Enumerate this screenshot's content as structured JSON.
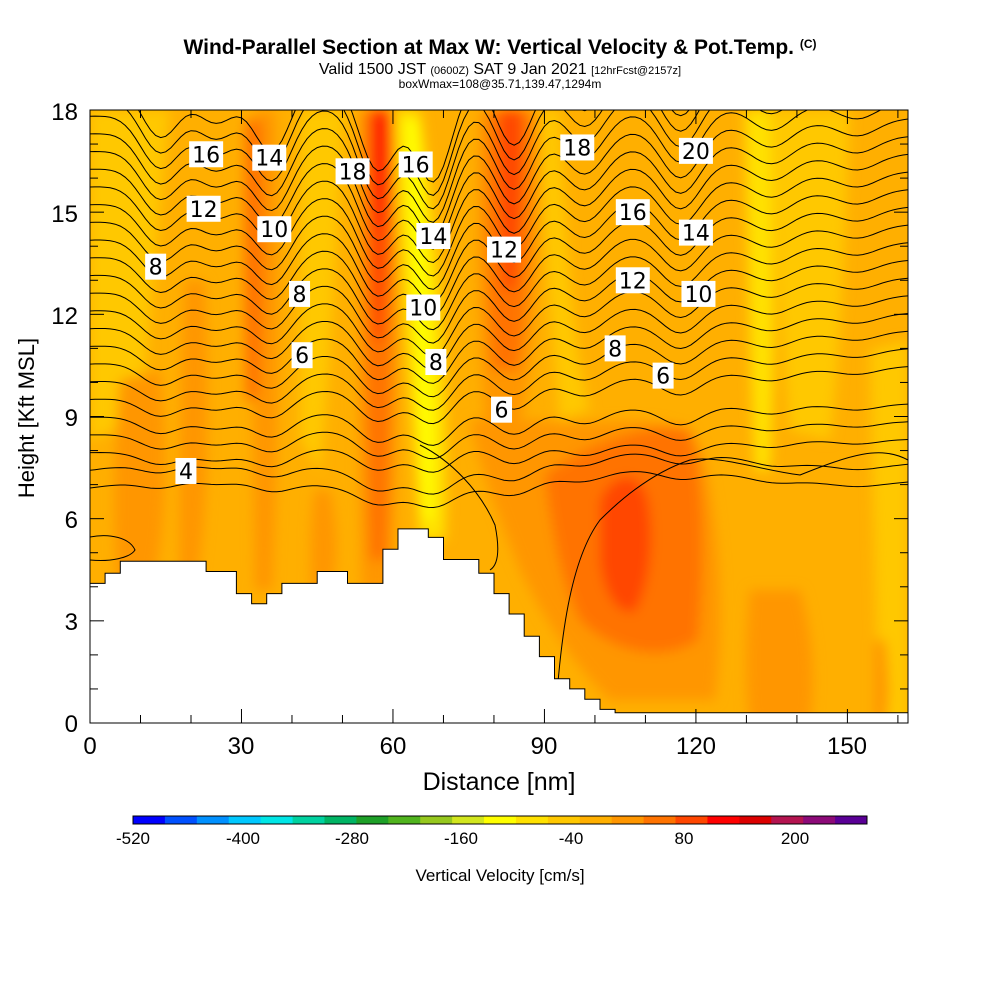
{
  "title": {
    "main": "Wind-Parallel Section at Max W: Vertical Velocity & Pot.Temp.",
    "copyright": "(C)",
    "valid_prefix": "Valid 1500 JST",
    "valid_utc": "(0600Z)",
    "valid_date": "SAT 9 Jan 2021",
    "forecast": "[12hrFcst@2157z]",
    "box": "boxWmax=108@35.71,139.47,1294m"
  },
  "colorbar": {
    "label": "Vertical Velocity [cm/s]",
    "tick_labels": [
      "-520",
      "-400",
      "-280",
      "-160",
      "-40",
      "80",
      "200"
    ],
    "colors": [
      "#0000ff",
      "#0050ff",
      "#0090ff",
      "#00c8ff",
      "#00e6e6",
      "#00d2a0",
      "#00b464",
      "#1ea028",
      "#50b41e",
      "#96c81e",
      "#d2e61e",
      "#ffff00",
      "#ffe100",
      "#ffc800",
      "#ffaf00",
      "#ff9600",
      "#ff7300",
      "#ff4600",
      "#ff0000",
      "#dc0000",
      "#b41450",
      "#8c0a78",
      "#5a0096"
    ]
  },
  "chart_data": {
    "type": "heatmap",
    "title": "Wind-Parallel Section at Max W: Vertical Velocity & Pot.Temp.",
    "xlabel": "Distance [nm]",
    "ylabel": "Height [Kft MSL]",
    "xlim": [
      0,
      162
    ],
    "ylim": [
      0,
      18
    ],
    "x_ticks": [
      "0",
      "30",
      "60",
      "90",
      "120",
      "150"
    ],
    "y_ticks": [
      "0",
      "3",
      "6",
      "9",
      "12",
      "15",
      "18"
    ],
    "fill_variable": "Vertical Velocity [cm/s]",
    "contour_variable": "Pot.Temp.",
    "contour_labels": [
      {
        "text": "16",
        "x": 23,
        "y": 16.7
      },
      {
        "text": "14",
        "x": 35.5,
        "y": 16.6
      },
      {
        "text": "18",
        "x": 52,
        "y": 16.2
      },
      {
        "text": "16",
        "x": 64.5,
        "y": 16.4
      },
      {
        "text": "18",
        "x": 96.5,
        "y": 16.9
      },
      {
        "text": "20",
        "x": 120,
        "y": 16.8
      },
      {
        "text": "12",
        "x": 22.5,
        "y": 15.1
      },
      {
        "text": "10",
        "x": 36.5,
        "y": 14.5
      },
      {
        "text": "14",
        "x": 68,
        "y": 14.3
      },
      {
        "text": "12",
        "x": 82,
        "y": 13.9
      },
      {
        "text": "16",
        "x": 107.5,
        "y": 15.0
      },
      {
        "text": "14",
        "x": 120,
        "y": 14.4
      },
      {
        "text": "8",
        "x": 13,
        "y": 13.4
      },
      {
        "text": "8",
        "x": 41.5,
        "y": 12.6
      },
      {
        "text": "10",
        "x": 66,
        "y": 12.2
      },
      {
        "text": "12",
        "x": 107.5,
        "y": 13.0
      },
      {
        "text": "10",
        "x": 120.5,
        "y": 12.6
      },
      {
        "text": "6",
        "x": 42,
        "y": 10.8
      },
      {
        "text": "8",
        "x": 68.5,
        "y": 10.6
      },
      {
        "text": "8",
        "x": 104,
        "y": 11.0
      },
      {
        "text": "6",
        "x": 113.5,
        "y": 10.2
      },
      {
        "text": "6",
        "x": 81.5,
        "y": 9.2
      },
      {
        "text": "4",
        "x": 19,
        "y": 7.4
      }
    ],
    "terrain_top": [
      [
        0,
        4.1
      ],
      [
        3,
        4.1
      ],
      [
        3,
        4.4
      ],
      [
        6,
        4.4
      ],
      [
        6,
        4.75
      ],
      [
        23,
        4.75
      ],
      [
        23,
        4.45
      ],
      [
        29,
        4.45
      ],
      [
        29,
        3.8
      ],
      [
        32,
        3.8
      ],
      [
        32,
        3.5
      ],
      [
        35,
        3.5
      ],
      [
        35,
        3.8
      ],
      [
        38,
        3.8
      ],
      [
        38,
        4.1
      ],
      [
        45,
        4.1
      ],
      [
        45,
        4.45
      ],
      [
        51,
        4.45
      ],
      [
        51,
        4.1
      ],
      [
        58,
        4.1
      ],
      [
        58,
        5.1
      ],
      [
        61,
        5.1
      ],
      [
        61,
        5.7
      ],
      [
        67,
        5.7
      ],
      [
        67,
        5.45
      ],
      [
        70,
        5.45
      ],
      [
        70,
        4.8
      ],
      [
        77,
        4.8
      ],
      [
        77,
        4.4
      ],
      [
        80,
        4.4
      ],
      [
        80,
        3.8
      ],
      [
        83,
        3.8
      ],
      [
        83,
        3.2
      ],
      [
        86,
        3.2
      ],
      [
        86,
        2.55
      ],
      [
        89,
        2.55
      ],
      [
        89,
        1.95
      ],
      [
        92,
        1.95
      ],
      [
        92,
        1.3
      ],
      [
        95,
        1.3
      ],
      [
        95,
        1.0
      ],
      [
        98,
        1.0
      ],
      [
        98,
        0.7
      ],
      [
        101,
        0.7
      ],
      [
        101,
        0.4
      ],
      [
        104,
        0.4
      ],
      [
        104,
        0.3
      ],
      [
        162,
        0.3
      ]
    ]
  }
}
